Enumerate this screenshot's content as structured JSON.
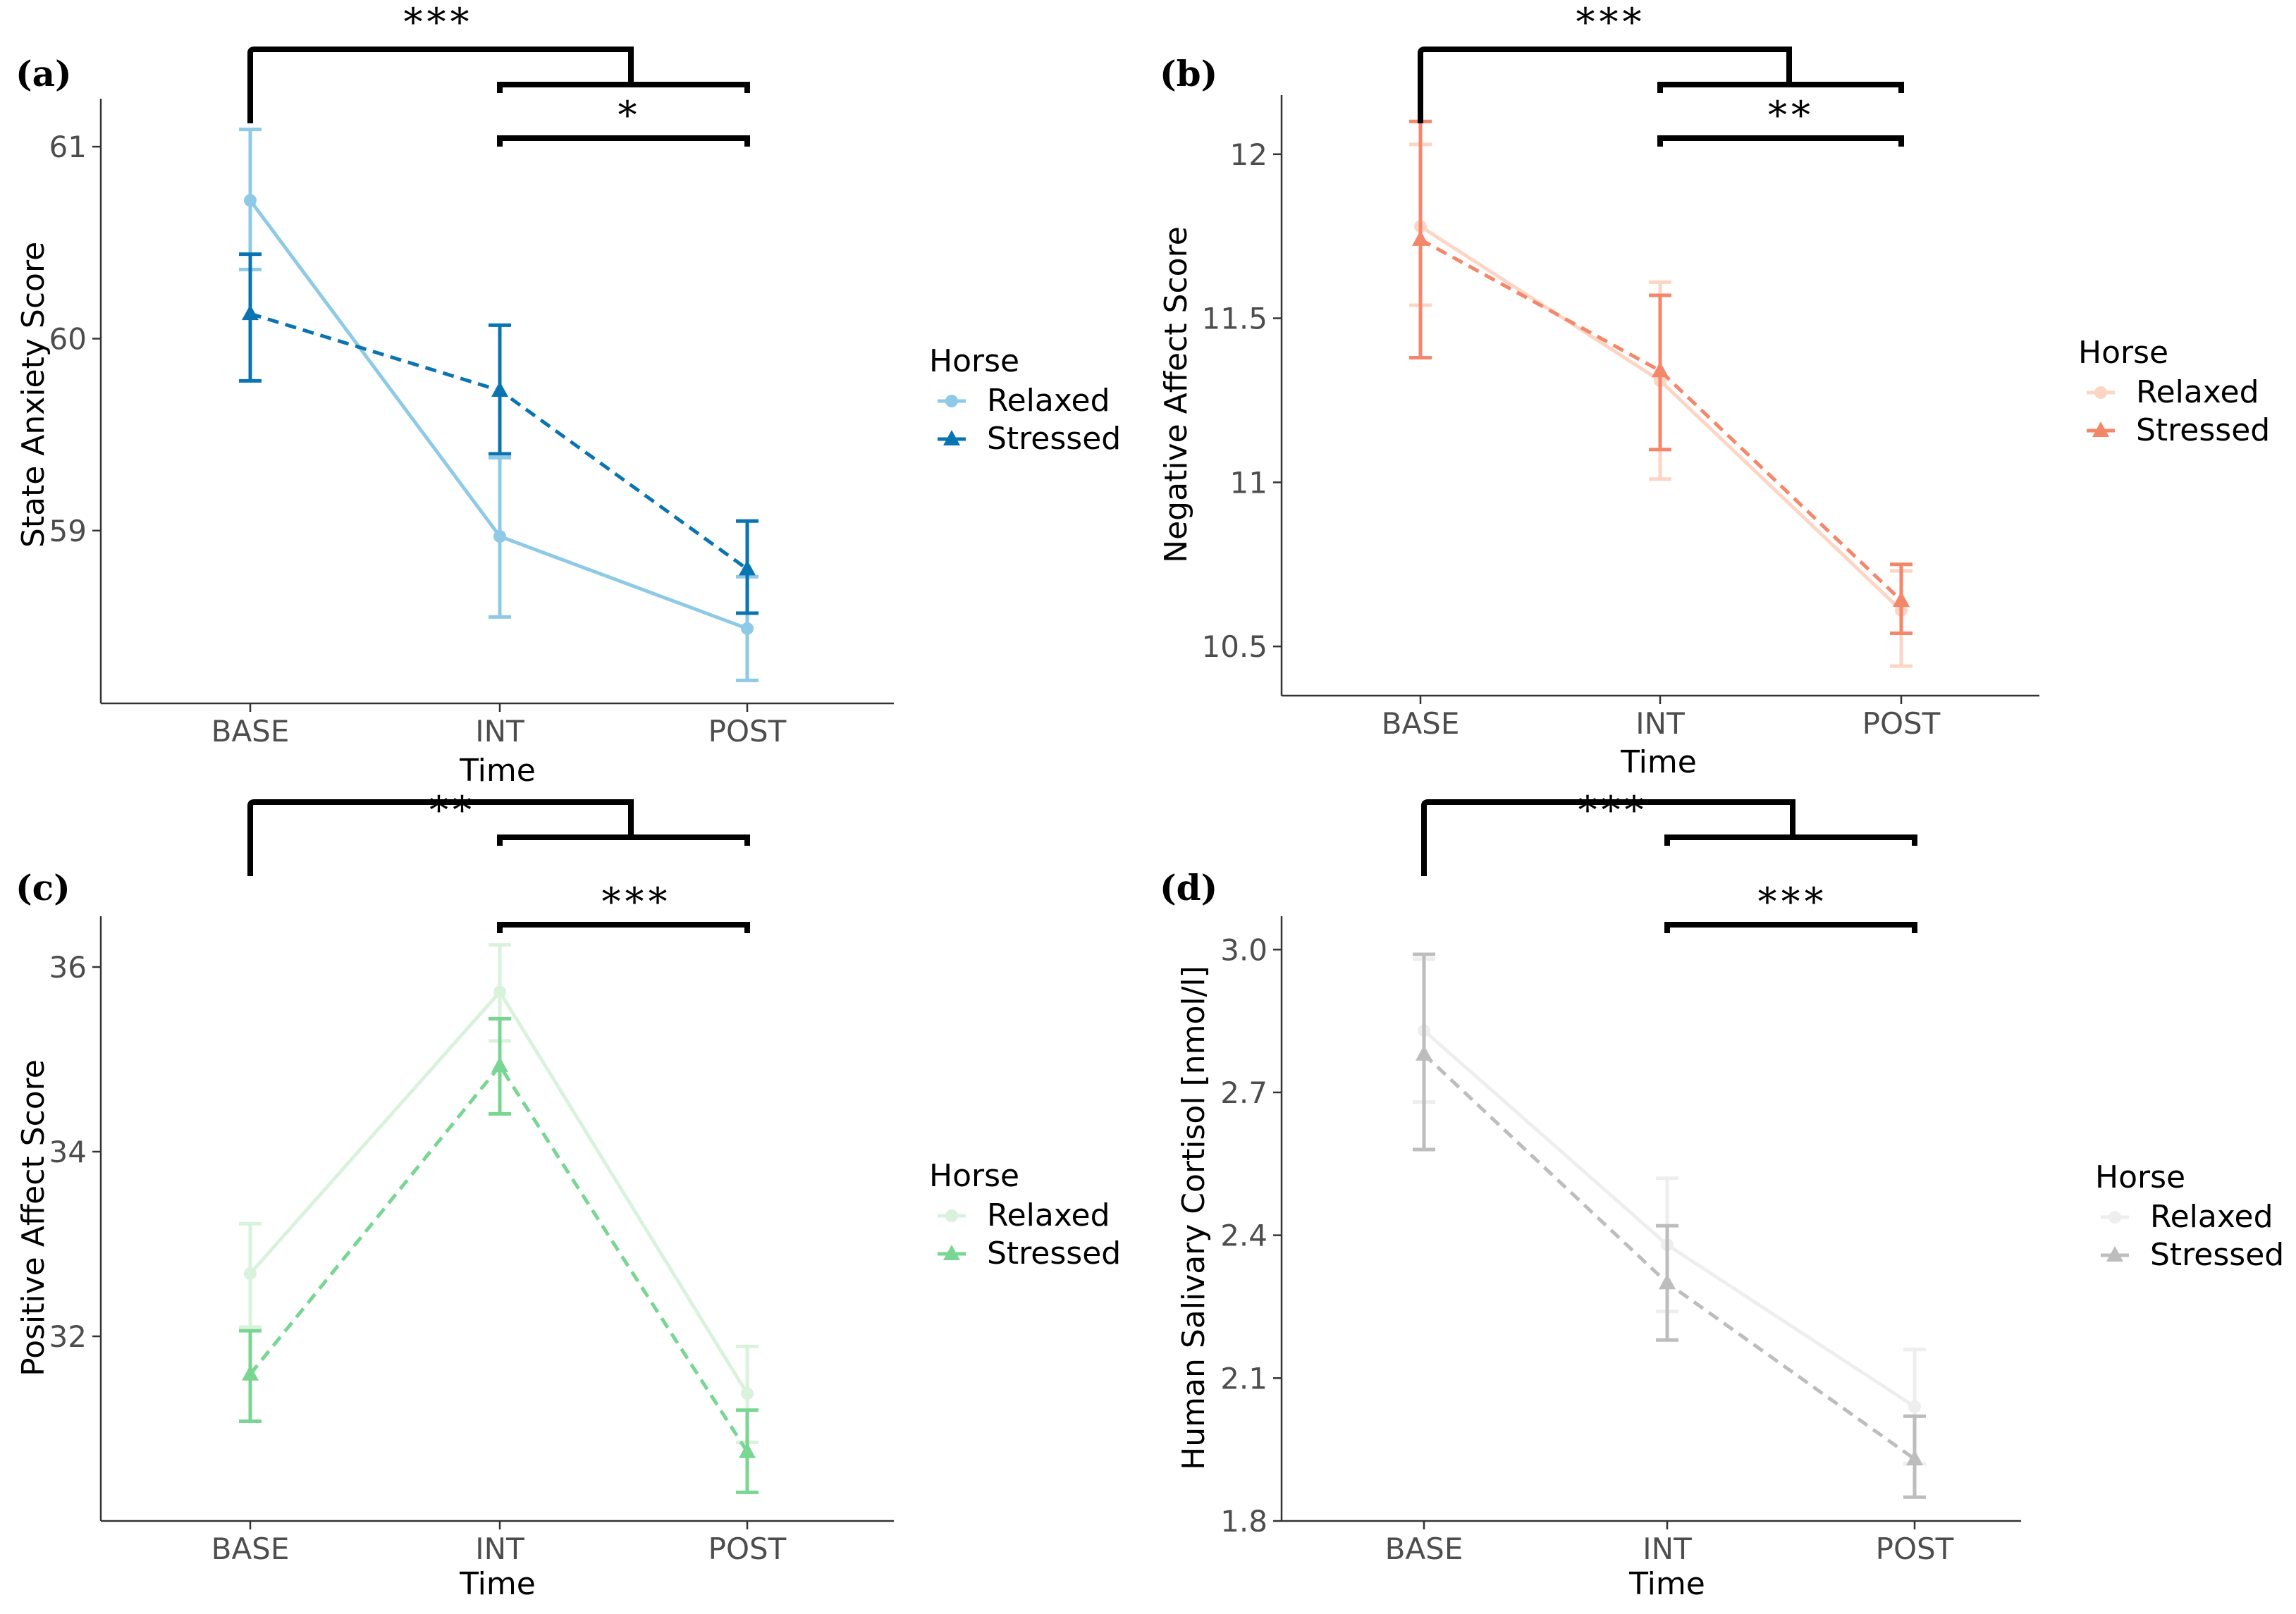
{
  "chart_data": [
    {
      "type": "line",
      "panel": "(a)",
      "xlabel": "Time",
      "ylabel": "State Anxiety Score",
      "categories": [
        "BASE",
        "INT",
        "POST"
      ],
      "ylim": [
        58.1,
        61.25
      ],
      "yticks": [
        59,
        60,
        61
      ],
      "legend_title": "Horse",
      "legend_position": "right",
      "series": [
        {
          "name": "Relaxed",
          "color": "#8ecae6",
          "style": "solid",
          "marker": "circle",
          "values": [
            60.72,
            58.97,
            58.49
          ],
          "lower": [
            60.36,
            58.55,
            58.22
          ],
          "upper": [
            61.09,
            59.38,
            58.76
          ]
        },
        {
          "name": "Stressed",
          "color": "#0a74b3",
          "style": "dashed",
          "marker": "triangle",
          "values": [
            60.13,
            59.73,
            58.8
          ],
          "lower": [
            59.78,
            59.4,
            58.57
          ],
          "upper": [
            60.44,
            60.07,
            59.05
          ]
        }
      ],
      "significance": [
        {
          "from": "BASE",
          "to": "INT/POST",
          "label": "***"
        },
        {
          "from": "INT",
          "to": "POST",
          "label": "*"
        }
      ]
    },
    {
      "type": "line",
      "panel": "(b)",
      "xlabel": "Time",
      "ylabel": "Negative Affect Score",
      "categories": [
        "BASE",
        "INT",
        "POST"
      ],
      "ylim": [
        10.35,
        12.18
      ],
      "yticks": [
        10.5,
        11.0,
        11.5,
        12.0
      ],
      "legend_title": "Horse",
      "legend_position": "right",
      "series": [
        {
          "name": "Relaxed",
          "color": "#fdd5c4",
          "style": "solid",
          "marker": "circle",
          "values": [
            11.78,
            11.31,
            10.61
          ],
          "lower": [
            11.54,
            11.01,
            10.44
          ],
          "upper": [
            12.03,
            11.61,
            10.73
          ]
        },
        {
          "name": "Stressed",
          "color": "#f4866a",
          "style": "dashed",
          "marker": "triangle",
          "values": [
            11.74,
            11.34,
            10.64
          ],
          "lower": [
            11.38,
            11.1,
            10.54
          ],
          "upper": [
            12.1,
            11.57,
            10.75
          ]
        }
      ],
      "significance": [
        {
          "from": "BASE",
          "to": "INT/POST",
          "label": "***"
        },
        {
          "from": "INT",
          "to": "POST",
          "label": "**"
        }
      ]
    },
    {
      "type": "line",
      "panel": "(c)",
      "xlabel": "Time",
      "ylabel": "Positive Affect Score",
      "categories": [
        "BASE",
        "INT",
        "POST"
      ],
      "ylim": [
        30.0,
        36.55
      ],
      "yticks": [
        32,
        34,
        36
      ],
      "legend_title": "Horse",
      "legend_position": "right",
      "series": [
        {
          "name": "Relaxed",
          "color": "#d9f2dc",
          "style": "solid",
          "marker": "circle",
          "values": [
            32.68,
            35.73,
            31.38
          ],
          "lower": [
            32.1,
            35.2,
            30.85
          ],
          "upper": [
            33.22,
            36.24,
            31.89
          ]
        },
        {
          "name": "Stressed",
          "color": "#78d692",
          "style": "dashed",
          "marker": "triangle",
          "values": [
            31.59,
            34.93,
            30.75
          ],
          "lower": [
            31.08,
            34.41,
            30.31
          ],
          "upper": [
            32.06,
            35.44,
            31.2
          ]
        }
      ],
      "significance": [
        {
          "from": "BASE",
          "to": "INT/POST",
          "label": "**"
        },
        {
          "from": "INT",
          "to": "POST",
          "label": "***"
        }
      ]
    },
    {
      "type": "line",
      "panel": "(d)",
      "xlabel": "Time",
      "ylabel": "Human Salivary Cortisol [nmol/l]",
      "categories": [
        "BASE",
        "INT",
        "POST"
      ],
      "ylim": [
        1.8,
        3.07
      ],
      "yticks": [
        1.8,
        2.1,
        2.4,
        2.7,
        3.0
      ],
      "ytick_labels": [
        "1.8",
        "2.1",
        "2.4",
        "2.7",
        "3.0"
      ],
      "legend_title": "Horse",
      "legend_position": "right",
      "series": [
        {
          "name": "Relaxed",
          "color": "#eeeeee",
          "style": "solid",
          "marker": "circle",
          "values": [
            2.83,
            2.38,
            2.04
          ],
          "lower": [
            2.68,
            2.24,
            1.92
          ],
          "upper": [
            2.98,
            2.52,
            2.16
          ]
        },
        {
          "name": "Stressed",
          "color": "#bdbdbd",
          "style": "dashed",
          "marker": "triangle",
          "values": [
            2.78,
            2.3,
            1.93
          ],
          "lower": [
            2.58,
            2.18,
            1.85
          ],
          "upper": [
            2.99,
            2.42,
            2.02
          ]
        }
      ],
      "significance": [
        {
          "from": "BASE",
          "to": "INT/POST",
          "label": "***"
        },
        {
          "from": "INT",
          "to": "POST",
          "label": "***"
        }
      ]
    }
  ]
}
